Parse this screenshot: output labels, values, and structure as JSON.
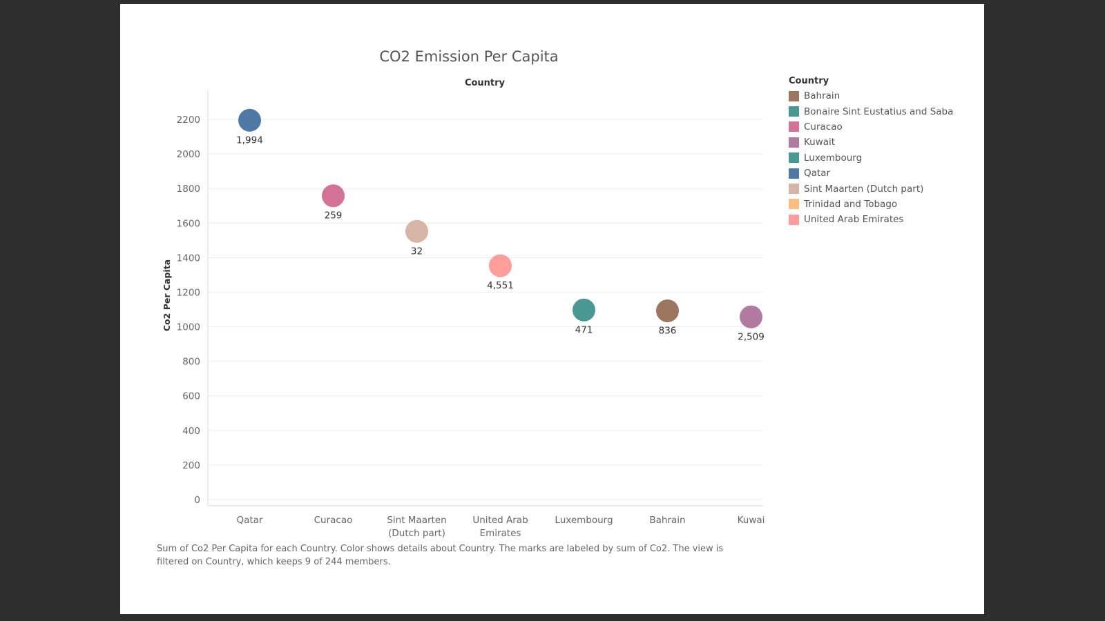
{
  "chart_data": {
    "type": "scatter",
    "title": "CO2 Emission Per Capita",
    "column_header": "Country",
    "ylabel": "Co2 Per Capita",
    "ylim": [
      0,
      2300
    ],
    "yticks": [
      0,
      200,
      400,
      600,
      800,
      1000,
      1200,
      1400,
      1600,
      1800,
      2000,
      2200
    ],
    "grid": true,
    "categories": [
      "Qatar",
      "Curacao",
      "Sint Maarten (Dutch part)",
      "United Arab Emirates",
      "Luxembourg",
      "Bahrain",
      "Kuwait"
    ],
    "category_lines": [
      [
        "Qatar"
      ],
      [
        "Curacao"
      ],
      [
        "Sint Maarten",
        "(Dutch part)"
      ],
      [
        "United Arab",
        "Emirates"
      ],
      [
        "Luxembourg"
      ],
      [
        "Bahrain"
      ],
      [
        "Kuwai"
      ]
    ],
    "points": [
      {
        "country": "Qatar",
        "y": 2195,
        "label": "1,994",
        "color": "#4e79a7"
      },
      {
        "country": "Curacao",
        "y": 1758,
        "label": "259",
        "color": "#d37295"
      },
      {
        "country": "Sint Maarten (Dutch part)",
        "y": 1552,
        "label": "32",
        "color": "#d7b5a6"
      },
      {
        "country": "United Arab Emirates",
        "y": 1353,
        "label": "4,551",
        "color": "#ff9d9a"
      },
      {
        "country": "Luxembourg",
        "y": 1097,
        "label": "471",
        "color": "#499894"
      },
      {
        "country": "Bahrain",
        "y": 1092,
        "label": "836",
        "color": "#9d7660"
      },
      {
        "country": "Kuwait",
        "y": 1057,
        "label": "2,509",
        "color": "#b07aa1"
      }
    ],
    "legend": {
      "title": "Country",
      "placement": "right",
      "items": [
        {
          "label": "Bahrain",
          "color": "#9d7660"
        },
        {
          "label": "Bonaire Sint Eustatius and Saba",
          "color": "#499894"
        },
        {
          "label": "Curacao",
          "color": "#d37295"
        },
        {
          "label": "Kuwait",
          "color": "#b07aa1"
        },
        {
          "label": "Luxembourg",
          "color": "#499894"
        },
        {
          "label": "Qatar",
          "color": "#4e79a7"
        },
        {
          "label": "Sint Maarten (Dutch part)",
          "color": "#d7b5a6"
        },
        {
          "label": "Trinidad and Tobago",
          "color": "#ffbe7d"
        },
        {
          "label": "United Arab Emirates",
          "color": "#ff9d9a"
        }
      ]
    },
    "caption": "Sum of Co2 Per Capita for each Country.  Color shows details about Country.  The marks are labeled by sum of Co2. The view is filtered on Country, which keeps 9 of 244 members."
  }
}
